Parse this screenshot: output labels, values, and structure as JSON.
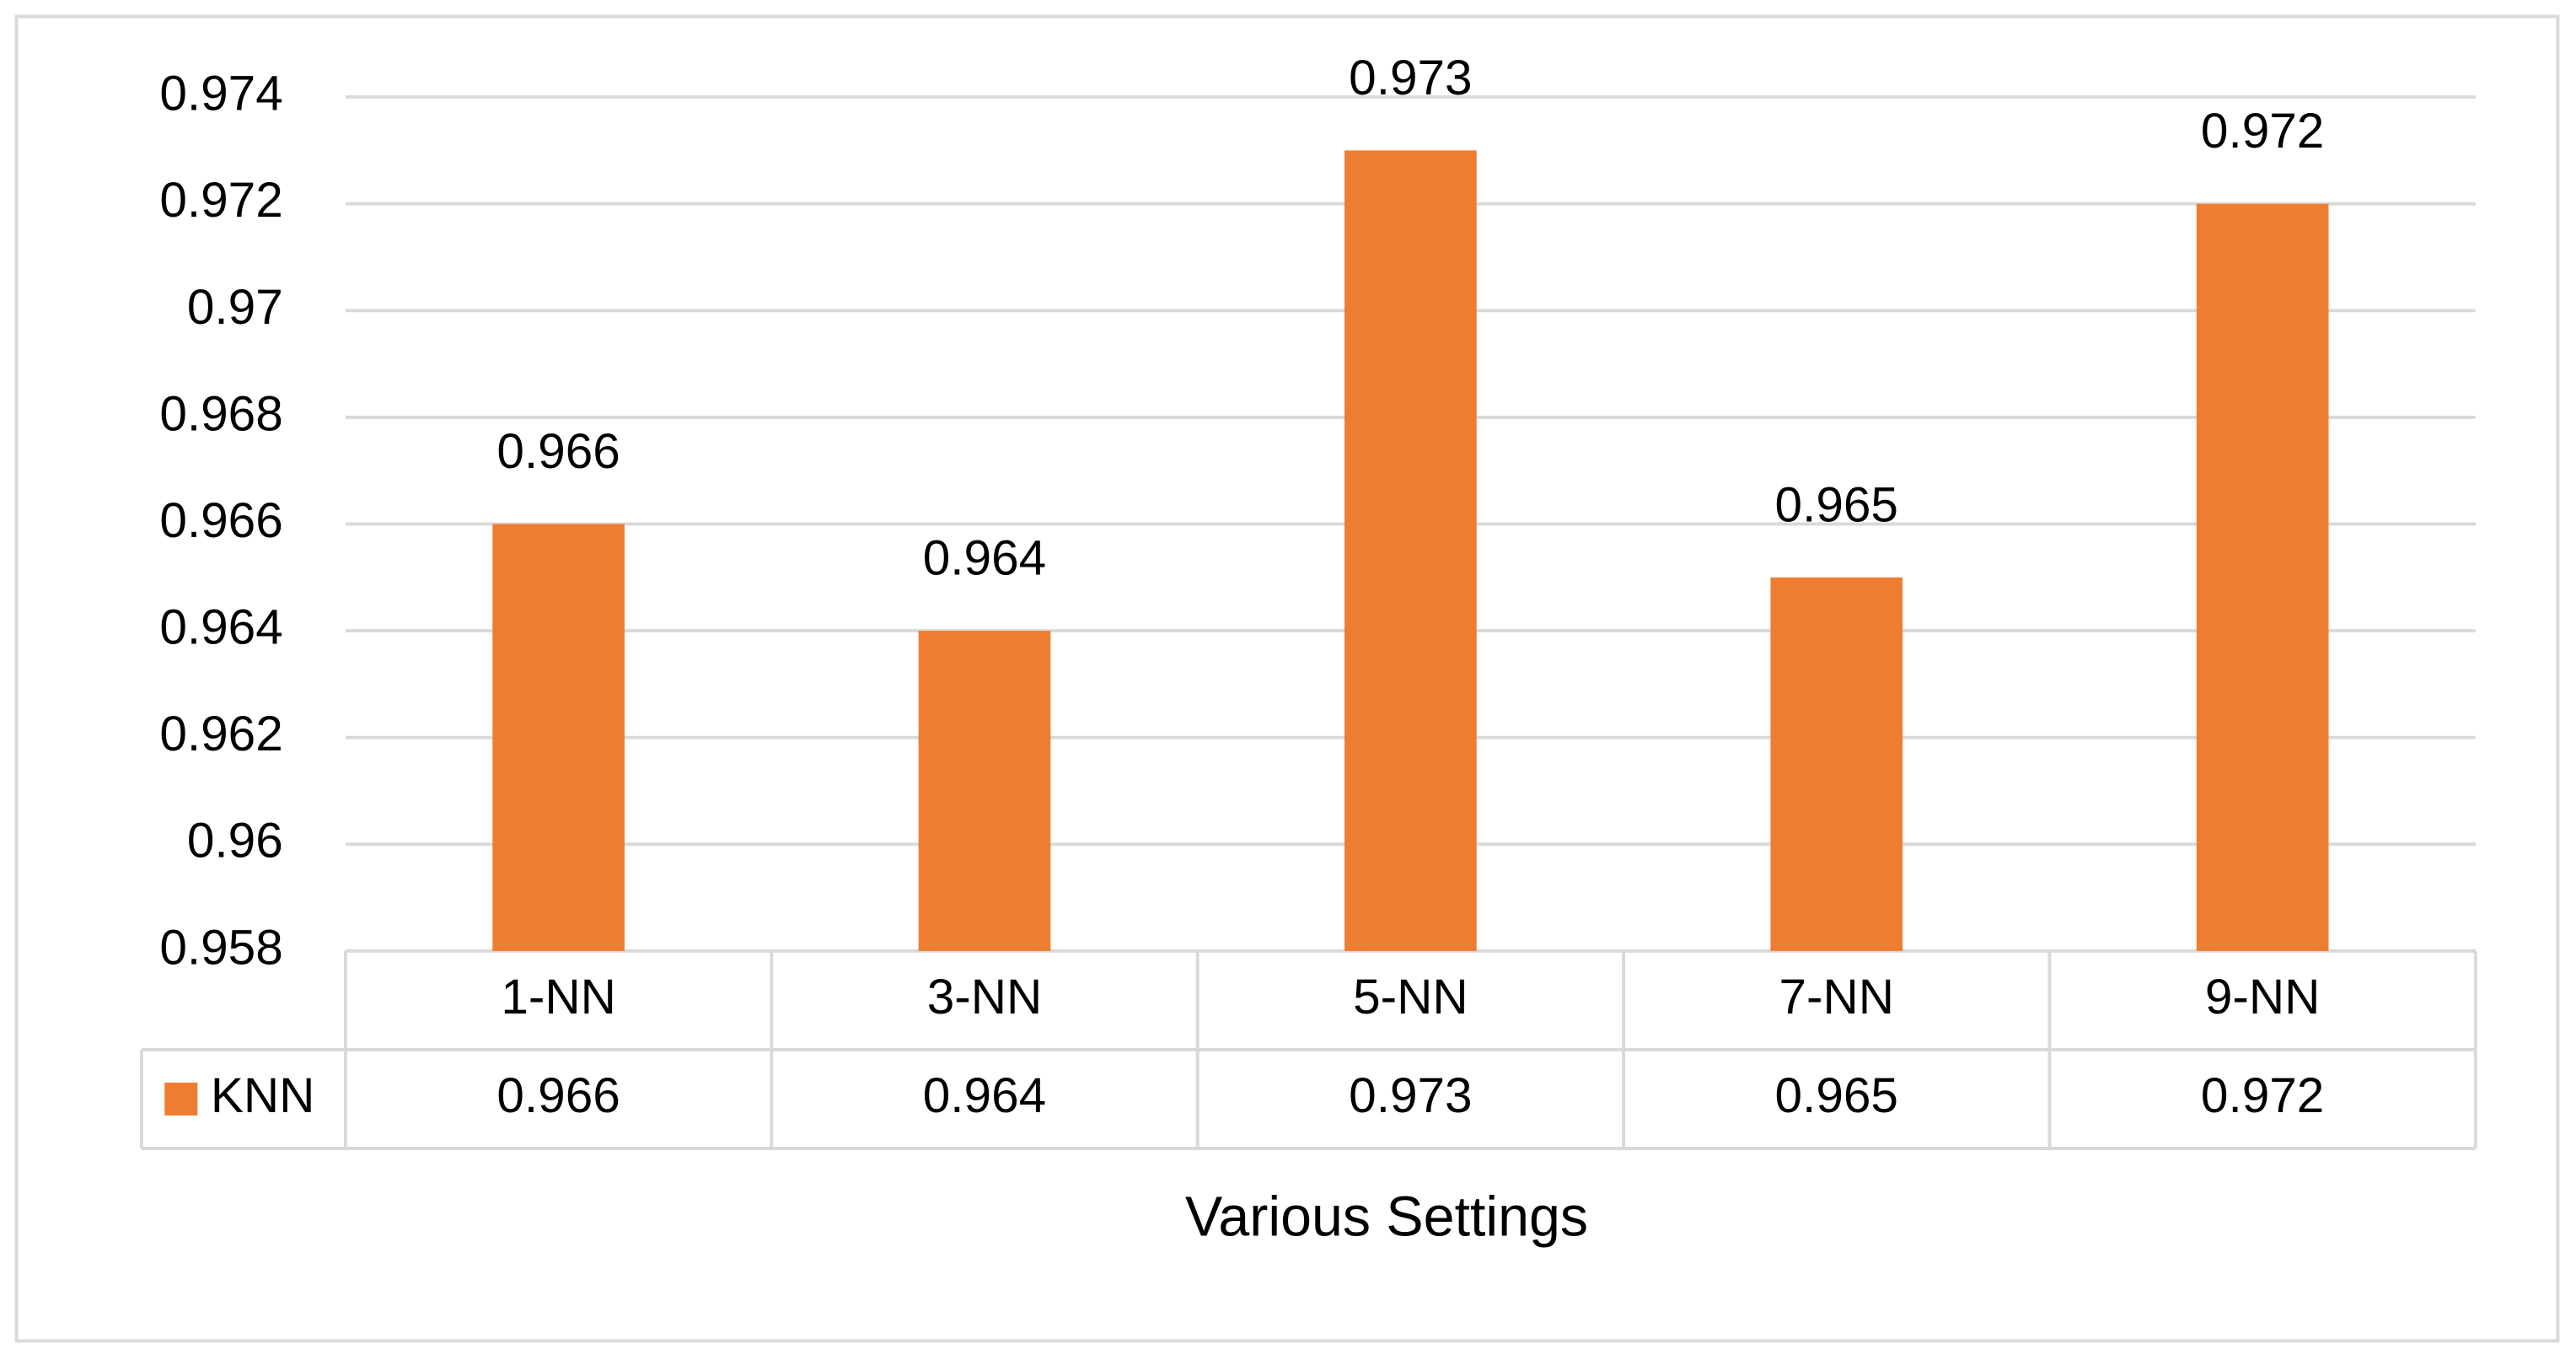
{
  "chart_data": {
    "type": "bar",
    "x_label": "Various Settings",
    "categories": [
      "1-NN",
      "3-NN",
      "5-NN",
      "7-NN",
      "9-NN"
    ],
    "series": [
      {
        "name": "KNN",
        "color": "#ed7d31",
        "values": [
          0.966,
          0.964,
          0.973,
          0.965,
          0.972
        ]
      }
    ],
    "ylim": [
      0.958,
      0.974
    ],
    "yticks": [
      0.958,
      0.96,
      0.962,
      0.964,
      0.966,
      0.968,
      0.97,
      0.972,
      0.974
    ],
    "grid": true
  }
}
